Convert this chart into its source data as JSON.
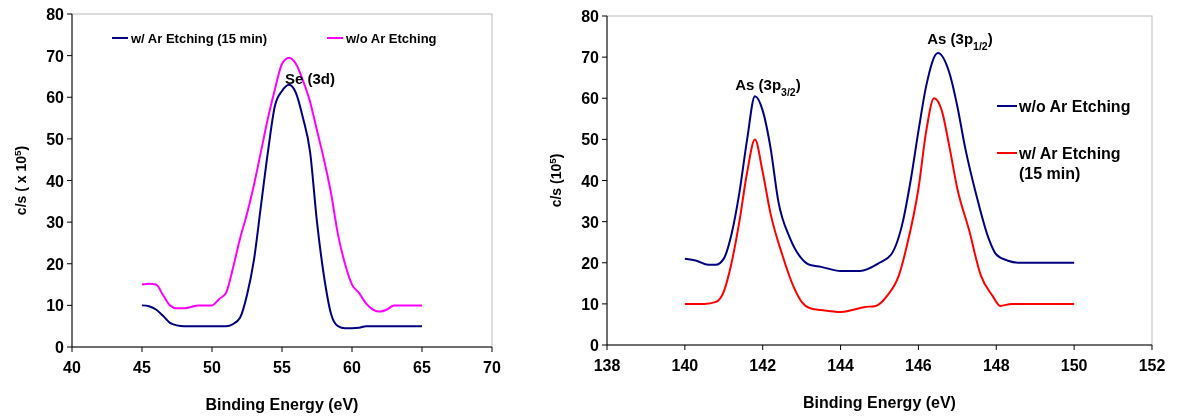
{
  "chart_data": [
    {
      "type": "line",
      "xlabel": "Binding Energy (eV)",
      "ylabel": "c/s ( x 10$^{5}$)",
      "xlim": [
        40,
        70
      ],
      "xticks": [
        40,
        45,
        50,
        55,
        60,
        65,
        70
      ],
      "ylim": [
        0,
        80
      ],
      "yticks": [
        0,
        10,
        20,
        30,
        40,
        50,
        60,
        70,
        80
      ],
      "grid": false,
      "legend": "top",
      "marker": "none",
      "line_style": "solid",
      "annotations": [
        "Se (3d)"
      ],
      "series": [
        {
          "name": "w/ Ar Etching (15 min)",
          "color": "#000080",
          "x": [
            45,
            45.5,
            46,
            46.5,
            47,
            47.5,
            48,
            49,
            50,
            51,
            51.5,
            52,
            52.5,
            53,
            53.5,
            54,
            54.5,
            55,
            55.5,
            56,
            56.5,
            57,
            57.5,
            58,
            58.5,
            59,
            59.5,
            60,
            60.5,
            61,
            62,
            63,
            64,
            65
          ],
          "values": [
            10,
            9.8,
            9,
            7.5,
            5.8,
            5.2,
            5,
            5,
            5,
            5,
            5.5,
            7,
            12.5,
            21,
            34,
            47,
            58,
            61.5,
            63,
            61,
            55,
            47,
            30,
            17,
            8,
            5,
            4.5,
            4.5,
            4.6,
            5,
            5,
            5,
            5,
            5
          ]
        },
        {
          "name": "w/o Ar Etching",
          "color": "#ff00ff",
          "x": [
            45,
            45.5,
            46,
            46.5,
            47,
            47.5,
            48,
            48.5,
            49,
            49.5,
            50,
            50.5,
            51,
            51.5,
            52,
            52.5,
            53,
            53.5,
            54,
            54.5,
            55,
            55.5,
            56,
            56.5,
            57,
            57.5,
            58,
            58.5,
            59,
            59.5,
            60,
            60.5,
            61,
            61.5,
            62,
            62.5,
            63,
            64,
            65
          ],
          "values": [
            15,
            15.2,
            15,
            12.5,
            10,
            9.3,
            9.3,
            9.6,
            10,
            10,
            10,
            11.5,
            13,
            19,
            26,
            32,
            39,
            47,
            55,
            62,
            68,
            69.5,
            68,
            64,
            59,
            52,
            45,
            37,
            27,
            20,
            15,
            13,
            10.5,
            9,
            8.5,
            9,
            10,
            10,
            10
          ]
        }
      ]
    },
    {
      "type": "line",
      "xlabel": "Binding Energy (eV)",
      "ylabel": "c/s (10$^{5}$)",
      "xlim": [
        138,
        152
      ],
      "xticks": [
        138,
        140,
        142,
        144,
        146,
        148,
        150,
        152
      ],
      "ylim": [
        0,
        80
      ],
      "yticks": [
        0,
        10,
        20,
        30,
        40,
        50,
        60,
        70,
        80
      ],
      "grid": false,
      "legend": "right",
      "marker": "none",
      "line_style": "solid",
      "annotations": [
        "As (3p$_{3/2}$)",
        "As (3p$_{1/2}$)"
      ],
      "series": [
        {
          "name": "w/o Ar Etching",
          "color": "#000080",
          "x": [
            140,
            140.3,
            140.6,
            140.8,
            141,
            141.2,
            141.4,
            141.6,
            141.8,
            142,
            142.2,
            142.4,
            142.7,
            143,
            143.2,
            143.5,
            144,
            144.5,
            145,
            145.3,
            145.6,
            145.8,
            146,
            146.2,
            146.5,
            146.8,
            147,
            147.2,
            147.5,
            147.8,
            148,
            148.3,
            148.6,
            149,
            150
          ],
          "values": [
            21,
            20.5,
            19.5,
            19.5,
            21,
            27,
            37,
            50,
            60.5,
            57,
            48,
            35,
            26,
            21,
            19.5,
            19,
            18,
            18,
            20,
            22,
            30,
            40,
            52,
            63,
            71,
            66,
            58,
            48,
            36,
            26,
            22,
            20.5,
            20,
            20,
            20
          ]
        },
        {
          "name": "w/ Ar Etching (15 min)",
          "color": "#ff0000",
          "x": [
            140,
            140.5,
            140.8,
            141,
            141.2,
            141.4,
            141.6,
            141.8,
            142,
            142.2,
            142.5,
            142.8,
            143,
            143.2,
            143.5,
            144,
            144.3,
            144.6,
            144.9,
            145.2,
            145.5,
            145.7,
            146,
            146.2,
            146.4,
            146.6,
            146.8,
            147,
            147.3,
            147.6,
            147.9,
            148.1,
            148.4,
            149,
            150
          ],
          "values": [
            10,
            10,
            10.5,
            13,
            20,
            30,
            42,
            50,
            42,
            32,
            22,
            14,
            10.5,
            9,
            8.5,
            8,
            8.5,
            9.2,
            9.5,
            12,
            17,
            24,
            38,
            52,
            60,
            57,
            48,
            38,
            28,
            17,
            12,
            9.5,
            10,
            10,
            10
          ]
        }
      ]
    }
  ]
}
